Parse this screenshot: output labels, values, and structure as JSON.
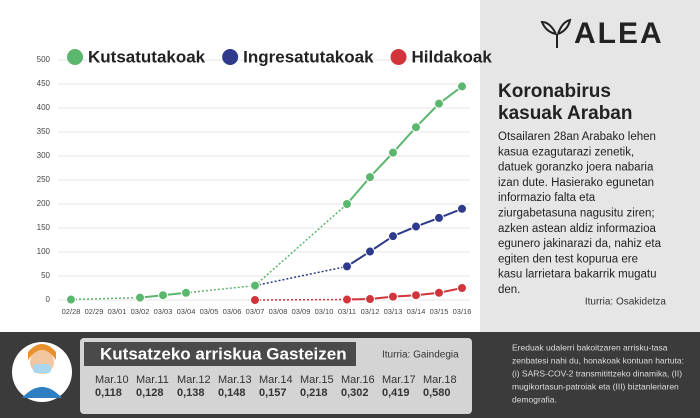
{
  "chart_data": {
    "type": "line",
    "categories": [
      "02/28",
      "02/29",
      "03/01",
      "03/02",
      "03/03",
      "03/04",
      "03/05",
      "03/06",
      "03/07",
      "03/08",
      "03/09",
      "03/10",
      "03/11",
      "03/12",
      "03/13",
      "03/14",
      "03/15",
      "03/16"
    ],
    "series": [
      {
        "name": "Hildakoak",
        "color": "#d1343b",
        "values": [
          null,
          null,
          null,
          null,
          null,
          null,
          null,
          null,
          0,
          null,
          null,
          null,
          1,
          2,
          7,
          10,
          15,
          25
        ]
      },
      {
        "name": "Ingresatutakoak",
        "color": "#2e3a8c",
        "values": [
          null,
          null,
          null,
          null,
          null,
          null,
          null,
          null,
          30,
          null,
          null,
          null,
          70,
          101,
          133,
          153,
          171,
          190
        ]
      },
      {
        "name": "Kutsatutakoak",
        "color": "#5bb66e",
        "values": [
          1,
          null,
          null,
          5,
          10,
          15,
          null,
          null,
          30,
          null,
          null,
          null,
          200,
          256,
          307,
          360,
          409,
          445
        ]
      }
    ],
    "ylim": [
      0,
      500
    ],
    "yticks": [
      0,
      50,
      100,
      150,
      200,
      250,
      300,
      350,
      400,
      450,
      500
    ],
    "grid": true
  },
  "panel": {
    "logo": "ALEA",
    "title": [
      "Koronabirus",
      "kasuak Araban"
    ],
    "text": [
      "Otsailaren 28an Arabako lehen",
      "kasua ezagutarazi zenetik,",
      "datuek goranzko joera nabaria",
      "izan dute. Hasierako egunetan",
      "informazio falta eta",
      "ziurgabetasuna nagusitu ziren;",
      "azken astean aldiz informazioa",
      "egunero jakinarazi da, nahiz eta",
      "egiten den test kopurua ere",
      "kasu larrietara bakarrik mugatu",
      "den."
    ],
    "source": "Iturria: Osakidetza"
  },
  "risk": {
    "title": "Kutsatzeko arriskua Gasteizen",
    "source": "Iturria: Gaindegia",
    "items": [
      [
        "Mar.10",
        "0,118"
      ],
      [
        "Mar.11",
        "0,128"
      ],
      [
        "Mar.12",
        "0,138"
      ],
      [
        "Mar.13",
        "0,148"
      ],
      [
        "Mar.14",
        "0,157"
      ],
      [
        "Mar.15",
        "0,218"
      ],
      [
        "Mar.16",
        "0,302"
      ],
      [
        "Mar.17",
        "0,419"
      ],
      [
        "Mar.18",
        "0,580"
      ]
    ],
    "note": [
      "Ereduak udalerri bakoitzaren arrisku-tasa",
      "zenbatesi nahi du, honakoak kontuan hartuta:",
      "(i) SARS-COV-2 transmitittzeko dinamika, (II)",
      "mugikortasun-patroiak eta (III) biztanleriaren",
      "demografia."
    ]
  }
}
